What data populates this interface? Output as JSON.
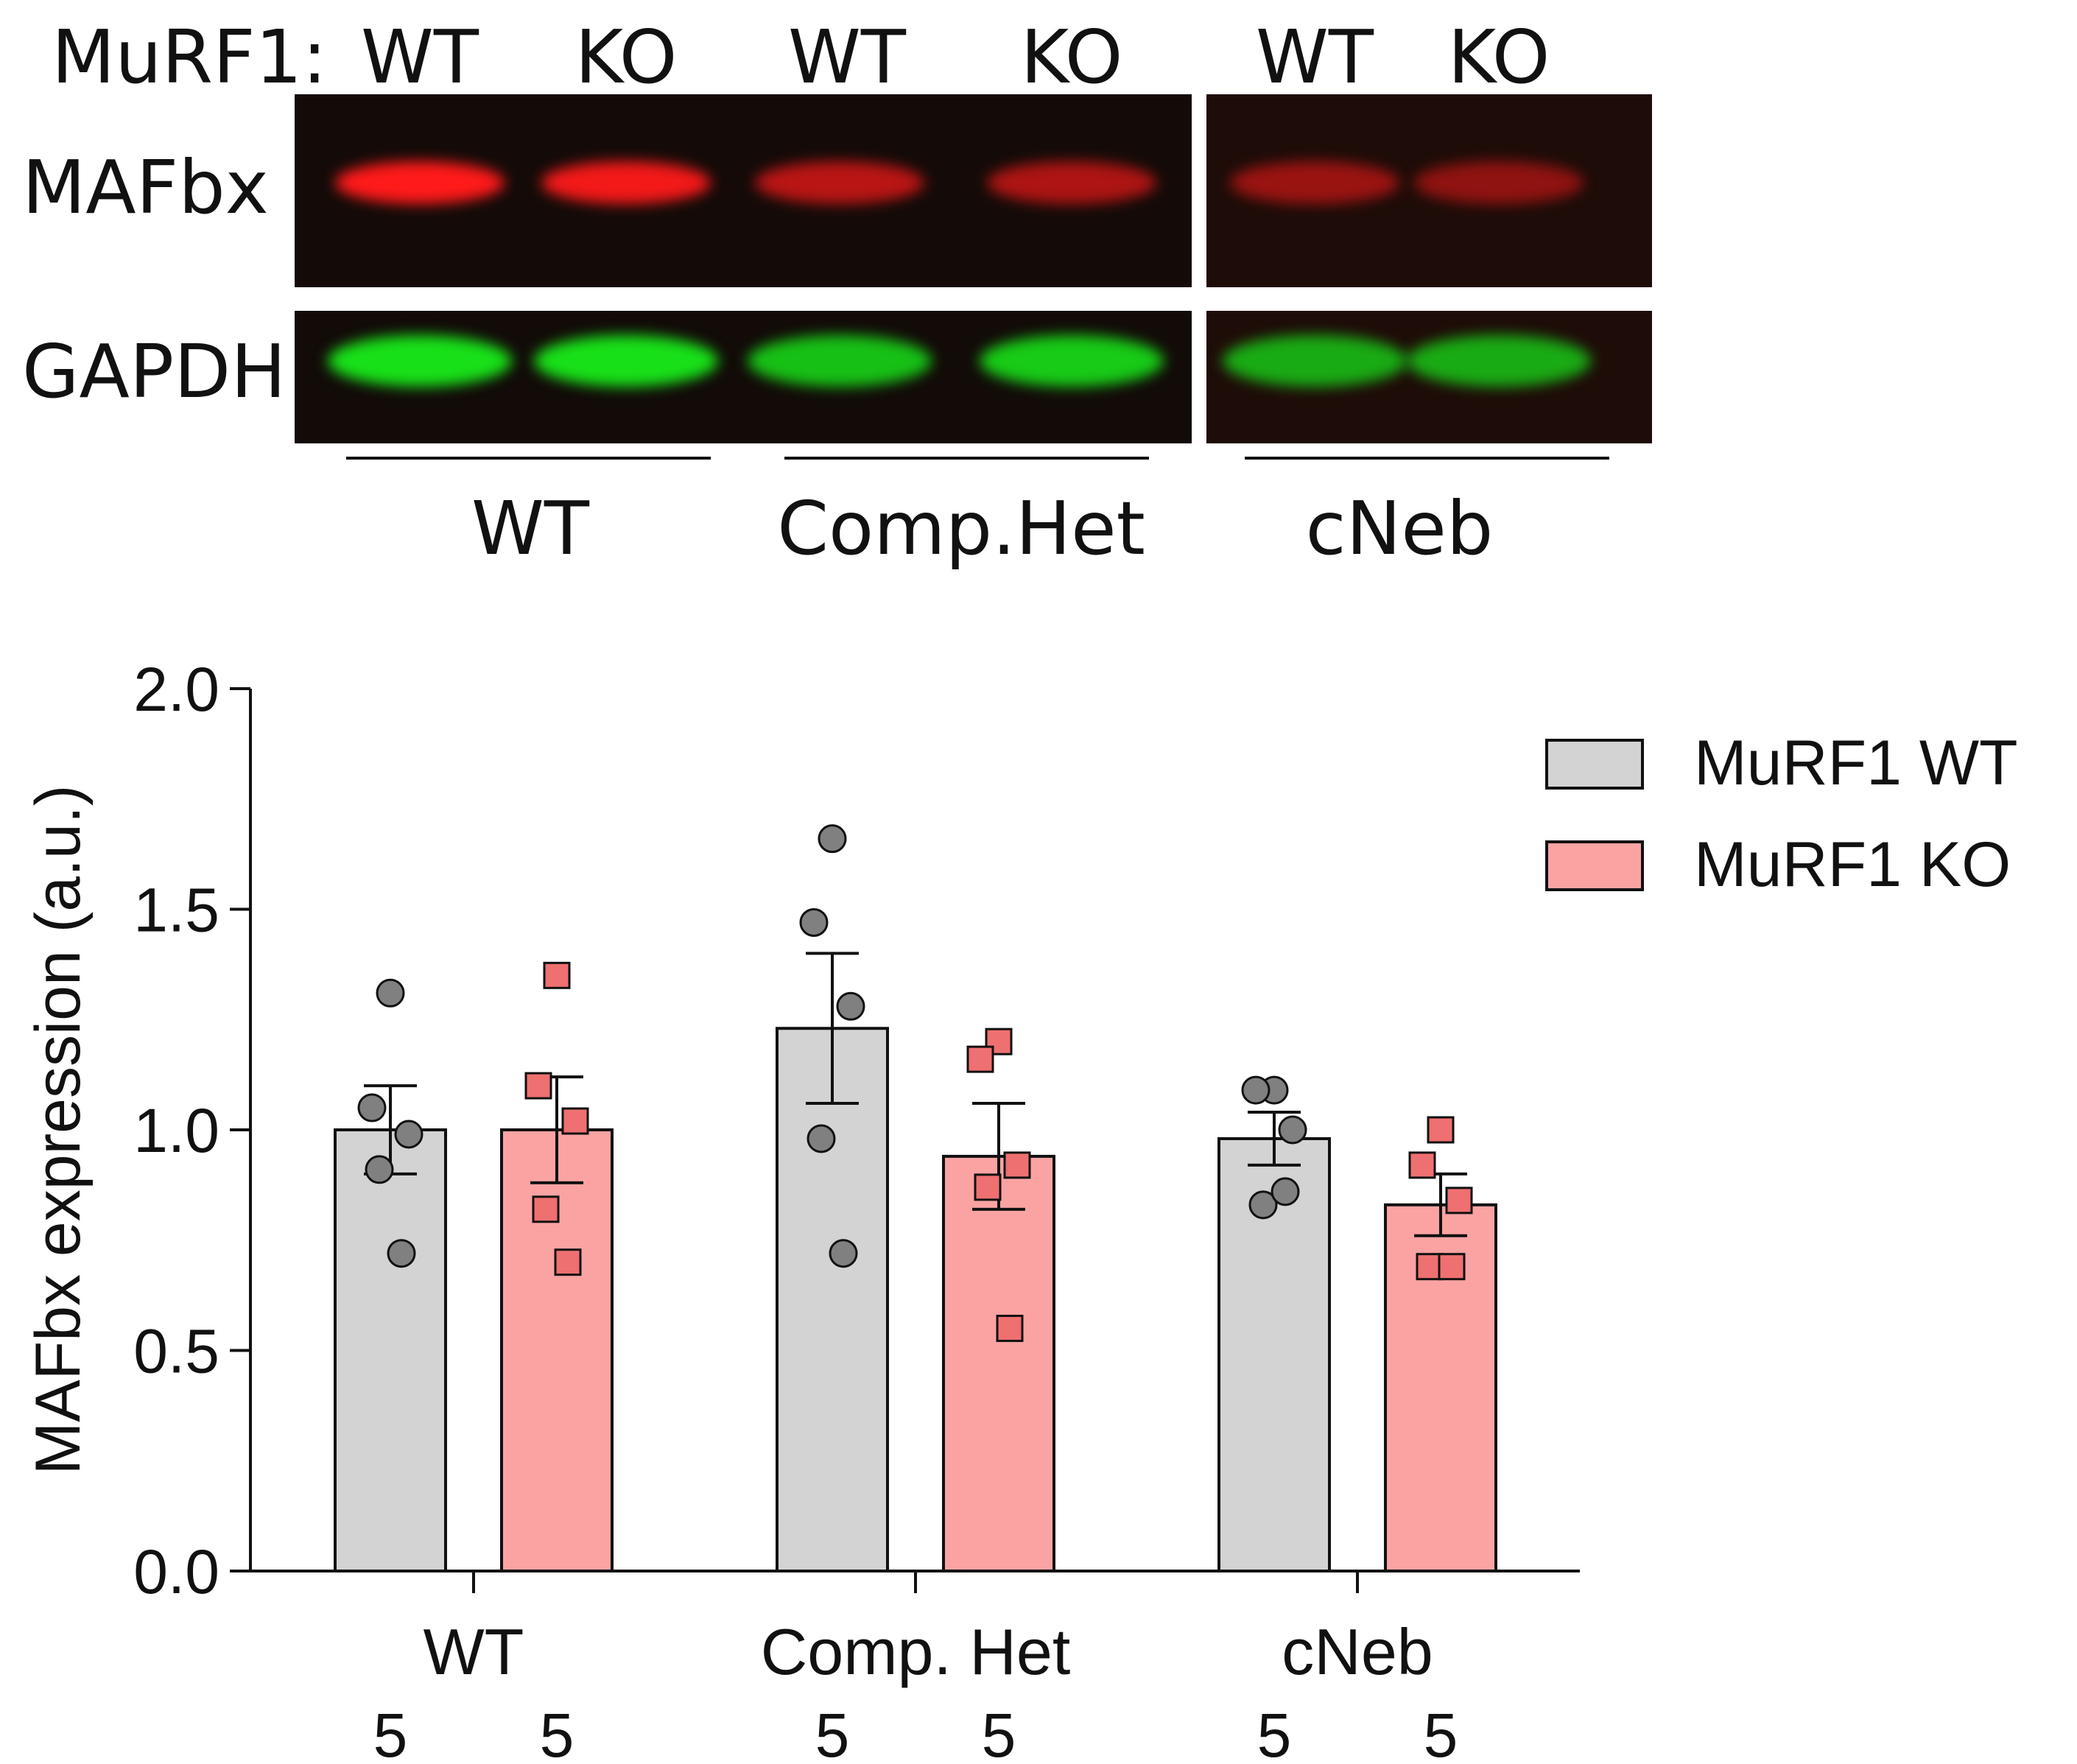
{
  "blot": {
    "header_label": "MuRF1:",
    "lane_labels": [
      "WT",
      "KO",
      "WT",
      "KO",
      "WT",
      "KO"
    ],
    "rows": [
      {
        "label": "MAFbx",
        "color": "#ff1a1a",
        "intensity": [
          1.0,
          0.95,
          0.7,
          0.65,
          0.55,
          0.5
        ]
      },
      {
        "label": "GAPDH",
        "color": "#18e018",
        "intensity": [
          1.0,
          1.0,
          0.85,
          0.9,
          0.75,
          0.75
        ]
      }
    ],
    "group_labels": [
      "WT",
      "Comp.Het",
      "cNeb"
    ]
  },
  "chart_data": {
    "type": "bar",
    "categories": [
      "WT",
      "Comp. Het",
      "cNeb"
    ],
    "ylabel": "MAFbx expression (a.u.)",
    "ylim": [
      0,
      2.0
    ],
    "yticks": [
      "0.0",
      "0.5",
      "1.0",
      "1.5",
      "2.0"
    ],
    "ytick_values": [
      0,
      0.5,
      1.0,
      1.5,
      2.0
    ],
    "legend_position": "top-right",
    "series": [
      {
        "name": "MuRF1 WT",
        "color": "#d3d3d3",
        "marker": "circle",
        "marker_color": "#808080",
        "values": [
          1.0,
          1.23,
          0.98
        ],
        "sem": [
          0.1,
          0.17,
          0.06
        ],
        "n": [
          "5",
          "5",
          "5"
        ],
        "points": [
          [
            1.31,
            1.05,
            0.99,
            0.91,
            0.72
          ],
          [
            1.66,
            1.47,
            1.28,
            0.98,
            0.72
          ],
          [
            1.09,
            1.09,
            1.0,
            0.83,
            0.86
          ]
        ]
      },
      {
        "name": "MuRF1 KO",
        "color": "#fba3a3",
        "marker": "square",
        "marker_color": "#ef7070",
        "values": [
          1.0,
          0.94,
          0.83
        ],
        "sem": [
          0.12,
          0.12,
          0.07
        ],
        "n": [
          "5",
          "5",
          "5"
        ],
        "points": [
          [
            1.35,
            1.1,
            1.02,
            0.82,
            0.7
          ],
          [
            1.2,
            1.16,
            0.92,
            0.87,
            0.55
          ],
          [
            1.0,
            0.92,
            0.84,
            0.69,
            0.69
          ]
        ]
      }
    ]
  }
}
